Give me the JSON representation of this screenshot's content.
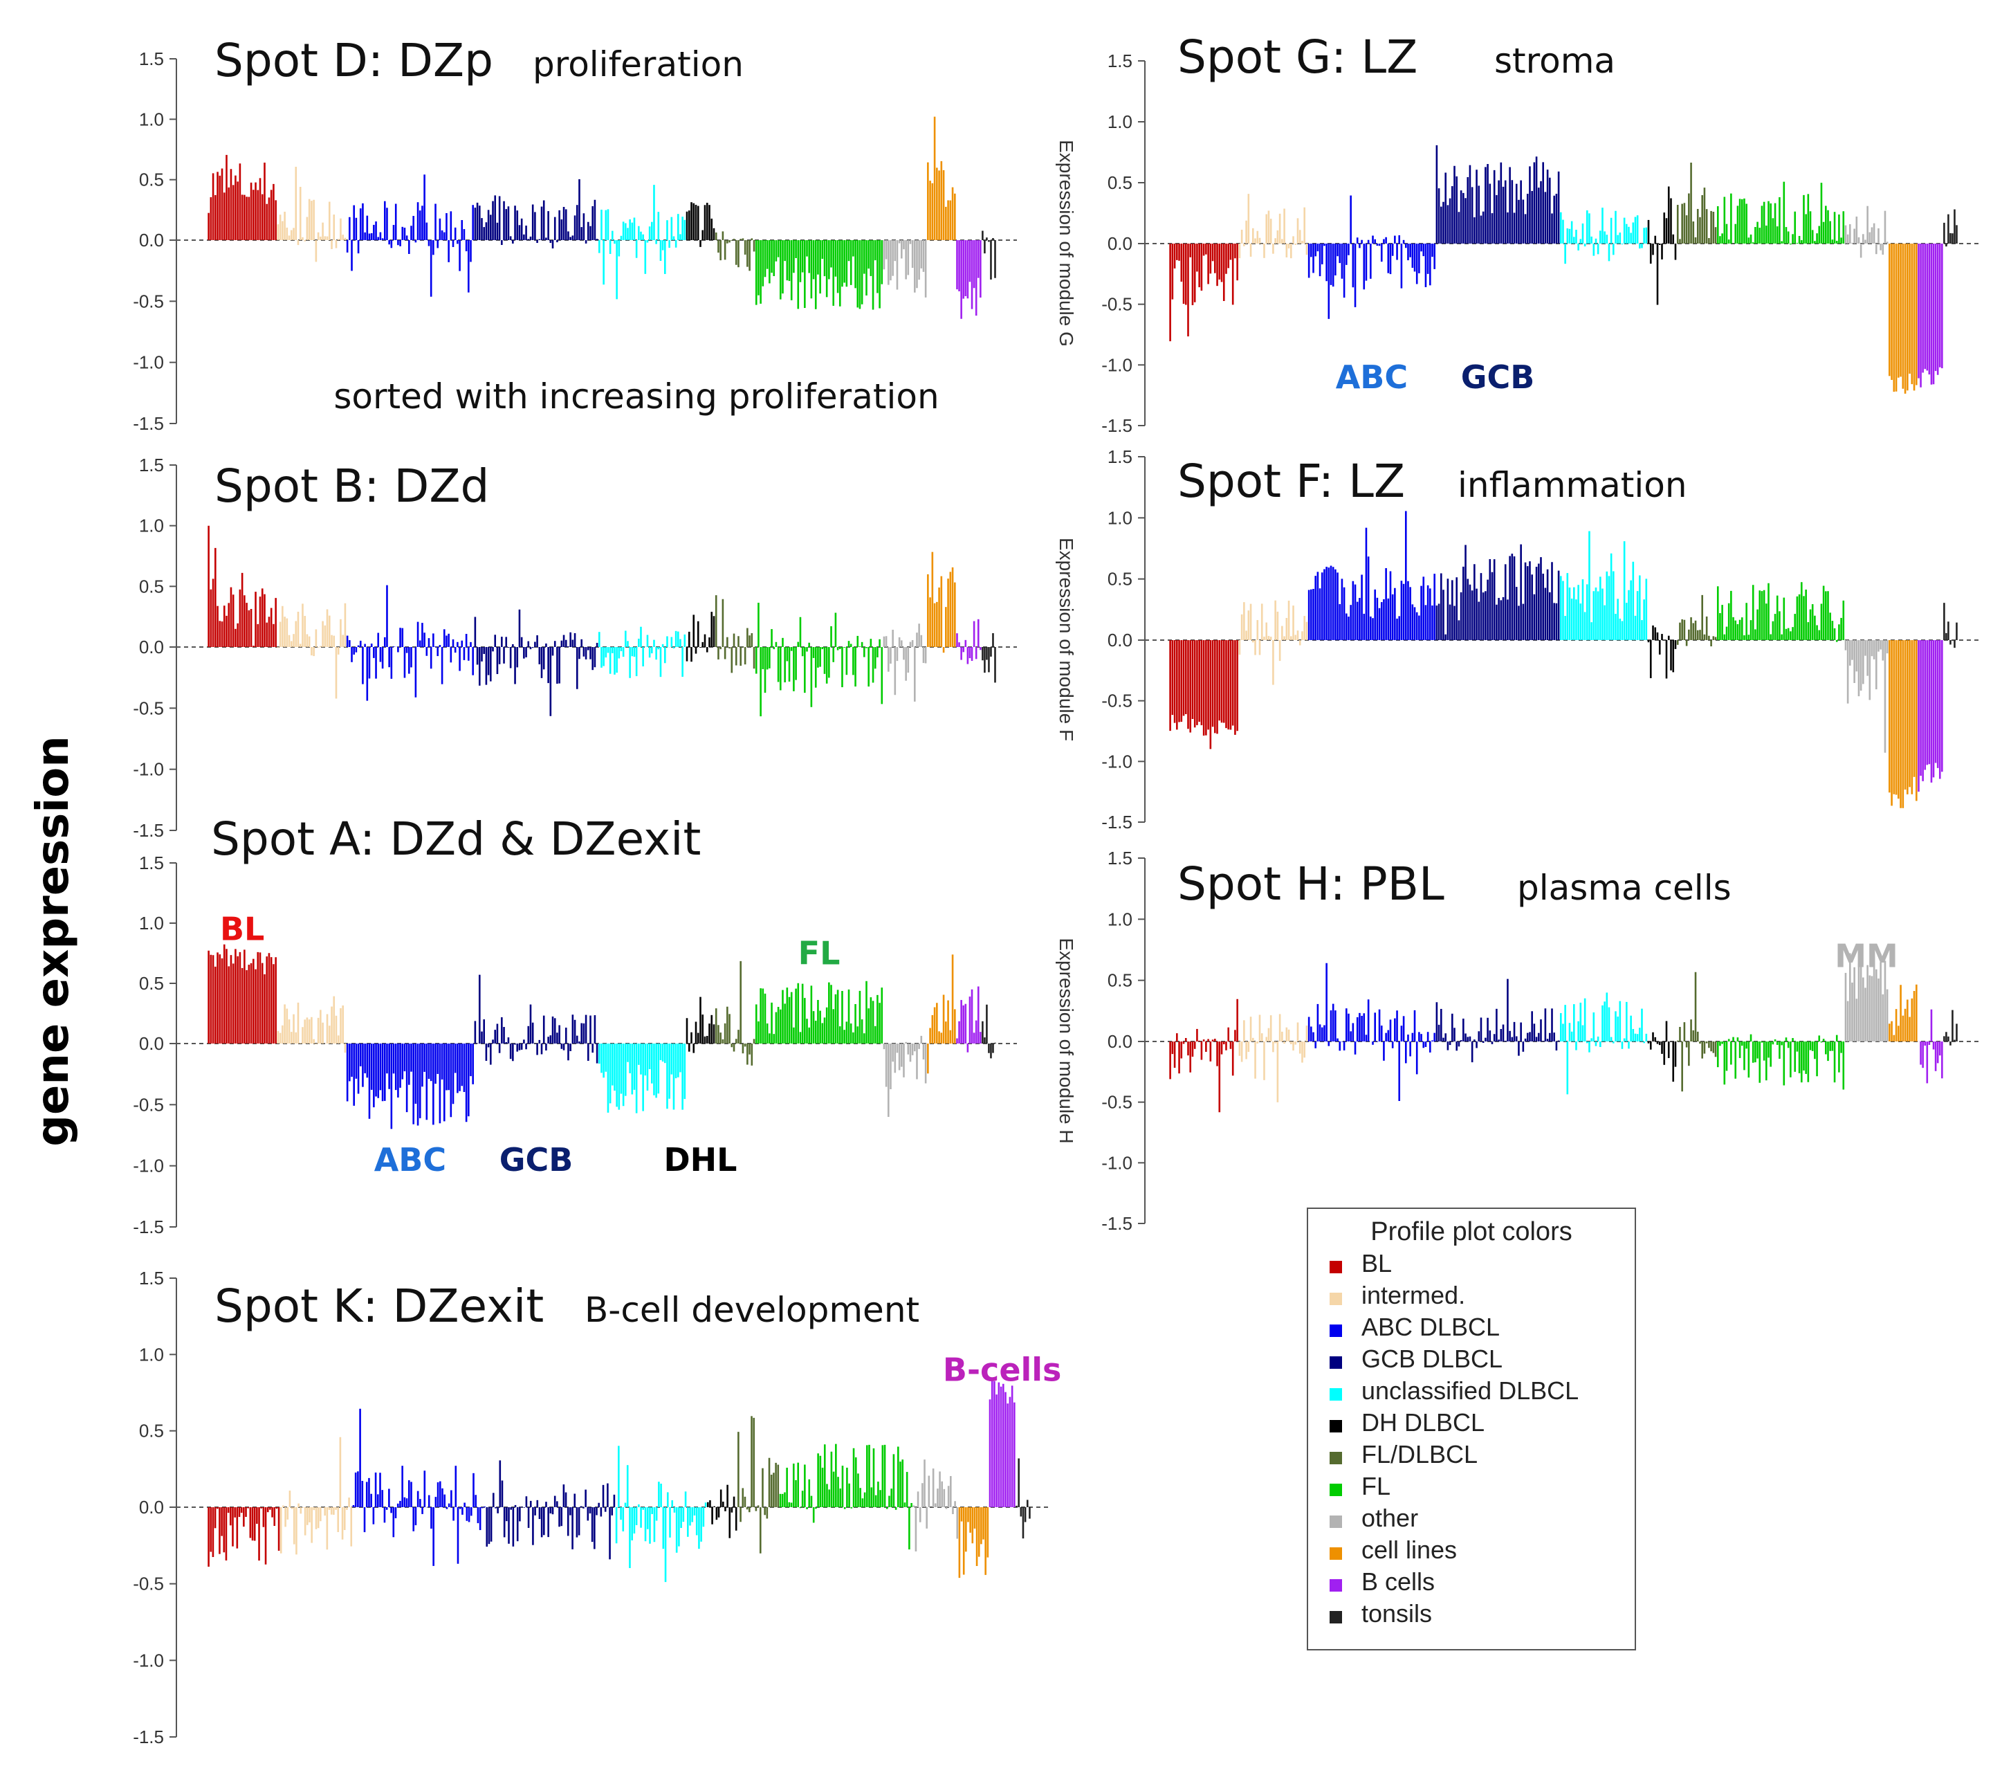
{
  "figure": {
    "global_ylabel": "gene expression",
    "legend": {
      "title": "Profile plot colors",
      "items": [
        {
          "label": "BL",
          "color": "#c40000"
        },
        {
          "label": "intermed.",
          "color": "#f5d6a8"
        },
        {
          "label": "ABC DLBCL",
          "color": "#0000ee"
        },
        {
          "label": "GCB DLBCL",
          "color": "#000080"
        },
        {
          "label": "unclassified DLBCL",
          "color": "#00ffff"
        },
        {
          "label": "DH DLBCL",
          "color": "#000000"
        },
        {
          "label": "FL/DLBCL",
          "color": "#556b2f"
        },
        {
          "label": "FL",
          "color": "#00cc00"
        },
        {
          "label": "other",
          "color": "#b3b3b3"
        },
        {
          "label": "cell lines",
          "color": "#ee9000"
        },
        {
          "label": "B cells",
          "color": "#a020f0"
        },
        {
          "label": "tonsils",
          "color": "#222222"
        }
      ]
    }
  },
  "chart_data": [
    {
      "id": "D",
      "type": "bar",
      "title": "Spot D: DZp",
      "subtitle": "proliferation",
      "note": "sorted with increasing proliferation",
      "ylabel": "",
      "ylim": [
        -1.5,
        1.5
      ],
      "yticks": [
        "1.5",
        "1.0",
        "0.5",
        "0.0",
        "-0.5",
        "-1.0",
        "-1.5"
      ],
      "groups": [
        "BL",
        "intermed.",
        "ABC DLBCL",
        "GCB DLBCL",
        "unclassified DLBCL",
        "DH DLBCL",
        "FL/DLBCL",
        "FL",
        "other",
        "cell lines",
        "B cells",
        "tonsils"
      ],
      "group_means": [
        0.45,
        0.15,
        0.1,
        0.15,
        0.05,
        0.15,
        -0.05,
        -0.35,
        -0.25,
        0.5,
        -0.5,
        -0.1
      ],
      "annotations": []
    },
    {
      "id": "B",
      "type": "bar",
      "title": "Spot B: DZd",
      "subtitle": "",
      "note": "",
      "ylabel": "",
      "ylim": [
        -1.5,
        1.5
      ],
      "yticks": [
        "1.5",
        "1.0",
        "0.5",
        "0.0",
        "-0.5",
        "-1.0",
        "-1.5"
      ],
      "groups": [
        "BL",
        "intermed.",
        "ABC DLBCL",
        "GCB DLBCL",
        "unclassified DLBCL",
        "DH DLBCL",
        "FL/DLBCL",
        "FL",
        "other",
        "cell lines",
        "B cells",
        "tonsils"
      ],
      "group_means": [
        0.4,
        0.15,
        -0.05,
        -0.1,
        -0.05,
        0.1,
        -0.05,
        -0.15,
        0.0,
        0.45,
        0.05,
        -0.1
      ],
      "annotations": []
    },
    {
      "id": "A",
      "type": "bar",
      "title": "Spot A: DZd & DZexit",
      "subtitle": "",
      "note": "",
      "ylabel": "",
      "ylim": [
        -1.5,
        1.5
      ],
      "yticks": [
        "1.5",
        "1.0",
        "0.5",
        "0.0",
        "-0.5",
        "-1.0",
        "-1.5"
      ],
      "groups": [
        "BL",
        "intermed.",
        "ABC DLBCL",
        "GCB DLBCL",
        "unclassified DLBCL",
        "DH DLBCL",
        "FL/DLBCL",
        "FL",
        "other",
        "cell lines",
        "B cells",
        "tonsils"
      ],
      "group_means": [
        0.7,
        0.15,
        -0.45,
        0.05,
        -0.35,
        0.25,
        0.1,
        0.3,
        -0.15,
        0.2,
        0.3,
        0.1
      ],
      "annotations": [
        {
          "text": "BL",
          "color": "#e81010",
          "group": 0,
          "y": 0.95
        },
        {
          "text": "ABC",
          "color": "#1e6fd9",
          "group": 2,
          "y": -0.95
        },
        {
          "text": "GCB",
          "color": "#0a1f6e",
          "group": 3,
          "y": -0.95
        },
        {
          "text": "DHL",
          "color": "#000000",
          "group": 5,
          "y": -0.95
        },
        {
          "text": "FL",
          "color": "#22aa44",
          "group": 7,
          "y": 0.75
        }
      ]
    },
    {
      "id": "K",
      "type": "bar",
      "title": "Spot K: DZexit",
      "subtitle": "B-cell development",
      "note": "",
      "ylabel": "",
      "ylim": [
        -1.5,
        1.5
      ],
      "yticks": [
        "1.5",
        "1.0",
        "0.5",
        "0.0",
        "-0.5",
        "-1.0",
        "-1.5"
      ],
      "groups": [
        "BL",
        "intermed.",
        "ABC DLBCL",
        "GCB DLBCL",
        "unclassified DLBCL",
        "DH DLBCL",
        "FL/DLBCL",
        "FL",
        "other",
        "cell lines",
        "B cells",
        "tonsils"
      ],
      "group_means": [
        -0.2,
        -0.1,
        0.05,
        -0.05,
        -0.05,
        -0.05,
        0.1,
        0.2,
        0.05,
        -0.25,
        0.75,
        0.15
      ],
      "annotations": [
        {
          "text": "B-cells",
          "color": "#bb22bb",
          "group": 10,
          "y": 0.9
        }
      ]
    },
    {
      "id": "G",
      "type": "bar",
      "title": "Spot G: LZ",
      "subtitle": "stroma",
      "note": "",
      "ylabel": "Expression of module G",
      "ylim": [
        -1.5,
        1.5
      ],
      "yticks": [
        "1.5",
        "1.0",
        "0.5",
        "0.0",
        "-0.5",
        "-1.0",
        "-1.5"
      ],
      "groups": [
        "BL",
        "intermed.",
        "ABC DLBCL",
        "GCB DLBCL",
        "unclassified DLBCL",
        "DH DLBCL",
        "FL/DLBCL",
        "FL",
        "other",
        "cell lines",
        "B cells",
        "tonsils"
      ],
      "group_means": [
        -0.3,
        0.1,
        -0.15,
        0.45,
        0.05,
        0.05,
        0.25,
        0.2,
        0.1,
        -1.15,
        -1.1,
        0.2
      ],
      "annotations": [
        {
          "text": "ABC",
          "color": "#1e6fd9",
          "group": 2,
          "y": -1.1
        },
        {
          "text": "GCB",
          "color": "#0a1f6e",
          "group": 3,
          "y": -1.1
        }
      ]
    },
    {
      "id": "F",
      "type": "bar",
      "title": "Spot F: LZ",
      "subtitle": "inflammation",
      "note": "",
      "ylabel": "Expression of module F",
      "ylim": [
        -1.5,
        1.5
      ],
      "yticks": [
        "1.5",
        "1.0",
        "0.5",
        "0.0",
        "-0.5",
        "-1.0",
        "-1.5"
      ],
      "groups": [
        "BL",
        "intermed.",
        "ABC DLBCL",
        "GCB DLBCL",
        "unclassified DLBCL",
        "DH DLBCL",
        "FL/DLBCL",
        "FL",
        "other",
        "cell lines",
        "B cells",
        "tonsils"
      ],
      "group_means": [
        -0.7,
        0.1,
        0.4,
        0.5,
        0.35,
        -0.1,
        0.15,
        0.25,
        -0.3,
        -1.3,
        -1.1,
        0.1
      ],
      "annotations": []
    },
    {
      "id": "H",
      "type": "bar",
      "title": "Spot H: PBL",
      "subtitle": "plasma cells",
      "note": "",
      "ylabel": "Expression of module H",
      "ylim": [
        -1.5,
        1.5
      ],
      "yticks": [
        "1.5",
        "1.0",
        "0.5",
        "0.0",
        "-0.5",
        "-1.0",
        "-1.5"
      ],
      "groups": [
        "BL",
        "intermed.",
        "ABC DLBCL",
        "GCB DLBCL",
        "unclassified DLBCL",
        "DH DLBCL",
        "FL/DLBCL",
        "FL",
        "other",
        "cell lines",
        "B cells",
        "tonsils"
      ],
      "group_means": [
        -0.1,
        0.05,
        0.1,
        0.05,
        0.15,
        -0.05,
        0.0,
        -0.15,
        0.5,
        0.25,
        -0.15,
        0.05
      ],
      "annotations": [
        {
          "text": "MM",
          "color": "#b3b3b3",
          "group": 8,
          "y": 0.7
        }
      ]
    }
  ]
}
